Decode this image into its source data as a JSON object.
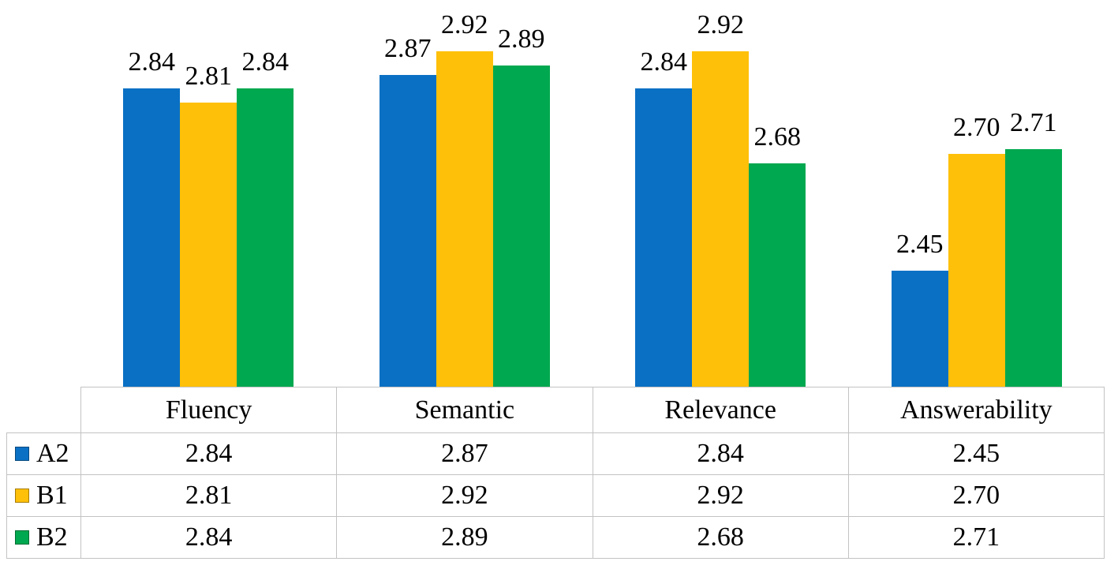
{
  "chart_data": {
    "type": "bar",
    "title": "",
    "xlabel": "",
    "ylabel": "",
    "ylim": [
      2.2,
      3.0
    ],
    "grid": false,
    "legend_position": "table-row-headers-left",
    "data_table_shown": true,
    "categories": [
      "Fluency",
      "Semantic",
      "Relevance",
      "Answerability"
    ],
    "series": [
      {
        "name": "A2",
        "color": "#0a70c4",
        "values": [
          2.84,
          2.87,
          2.84,
          2.45
        ],
        "labels": [
          "2.84",
          "2.87",
          "2.84",
          "2.45"
        ]
      },
      {
        "name": "B1",
        "color": "#ffc009",
        "values": [
          2.81,
          2.92,
          2.92,
          2.7
        ],
        "labels": [
          "2.81",
          "2.92",
          "2.92",
          "2.70"
        ]
      },
      {
        "name": "B2",
        "color": "#00a84f",
        "values": [
          2.84,
          2.89,
          2.68,
          2.71
        ],
        "labels": [
          "2.84",
          "2.89",
          "2.68",
          "2.71"
        ]
      }
    ]
  },
  "table": {
    "corner": "",
    "headers": [
      "Fluency",
      "Semantic",
      "Relevance",
      "Answerability"
    ],
    "rows": [
      {
        "key": "A2",
        "swatch_color": "#0a70c4",
        "cells": [
          "2.84",
          "2.87",
          "2.84",
          "2.45"
        ]
      },
      {
        "key": "B1",
        "swatch_color": "#ffc009",
        "cells": [
          "2.81",
          "2.92",
          "2.92",
          "2.70"
        ]
      },
      {
        "key": "B2",
        "swatch_color": "#00a84f",
        "cells": [
          "2.84",
          "2.89",
          "2.68",
          "2.71"
        ]
      }
    ],
    "border_color": "#c3c3c3"
  }
}
